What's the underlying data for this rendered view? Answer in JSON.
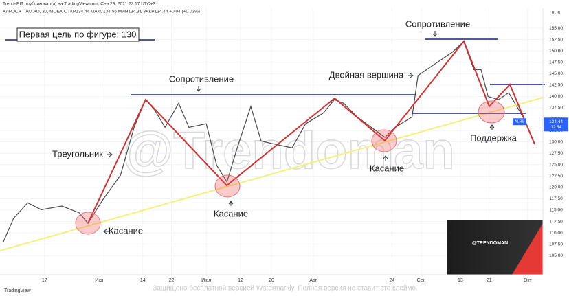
{
  "chart_data": {
    "type": "line",
    "title": "TrendsBIT опубликовал(а) на TradingView.com, Сен 29, 2021 23:17 UTC+3",
    "subtitle": "АЛРОСА ПАО АО, 30, MOEX  ОТКР134.44  МАКС134.56  МИН134.31  ЗАКР134.44  +0.04 (+0.03%)",
    "currency": "RUB",
    "symbol_label": "ALRS",
    "last_price": 134.44,
    "countdown": "12:54",
    "x": [
      0.6,
      2.5,
      5.1,
      7.6,
      11.4,
      14.6,
      16.2,
      19,
      22.2,
      24.7,
      26.8,
      28.5,
      30.4,
      32.9,
      34.8,
      38,
      39.9,
      41.8,
      43.7,
      46.2,
      48.1,
      50.6,
      53.8,
      56.3,
      59.5,
      61.6,
      63.3,
      65.8,
      68.4,
      70.9,
      72.8,
      75.9,
      77,
      79.7,
      83.5,
      85.4,
      87.3,
      88.6,
      89.9,
      91.8,
      93.7,
      95.6,
      96.8
    ],
    "series": [
      {
        "name": "ALRS",
        "color": "#4a4a4a",
        "values": [
          108.0,
          113.2,
          116.6,
          115.1,
          115.9,
          114.4,
          112.1,
          117.4,
          122.7,
          133.2,
          139.3,
          137.0,
          133.2,
          138.5,
          133.2,
          134.0,
          124.9,
          121.2,
          128.7,
          137.8,
          130.2,
          129.5,
          128.7,
          134.0,
          136.3,
          139.3,
          138.5,
          135.5,
          133.2,
          131.0,
          133.2,
          135.5,
          144.6,
          146.8,
          149.9,
          152.1,
          145.9,
          145.9,
          140.0,
          139.3,
          140.8,
          137.0,
          134.44
        ]
      }
    ],
    "xlim": [
      0,
      100
    ],
    "xticks": [
      {
        "value": 8.2,
        "label": "17"
      },
      {
        "value": 18.4,
        "label": "Июн"
      },
      {
        "value": 26.3,
        "label": "14"
      },
      {
        "value": 31.6,
        "label": "22"
      },
      {
        "value": 38,
        "label": "Июл"
      },
      {
        "value": 44.3,
        "label": "12"
      },
      {
        "value": 50,
        "label": "20"
      },
      {
        "value": 57.7,
        "label": "Авг"
      },
      {
        "value": 72.2,
        "label": "24"
      },
      {
        "value": 77.6,
        "label": "Сен"
      },
      {
        "value": 84.8,
        "label": "13"
      },
      {
        "value": 90.1,
        "label": "21"
      },
      {
        "value": 97.2,
        "label": "Окт"
      }
    ],
    "ylim": [
      100.8,
      159.4
    ],
    "yticks": [
      {
        "value": 105,
        "label": "105.00"
      },
      {
        "value": 107.5,
        "label": "107.50"
      },
      {
        "value": 110,
        "label": "110.00"
      },
      {
        "value": 112.5,
        "label": "112.50"
      },
      {
        "value": 115,
        "label": "115.00"
      },
      {
        "value": 117.5,
        "label": "117.50"
      },
      {
        "value": 120,
        "label": "120.00"
      },
      {
        "value": 122.5,
        "label": "122.50"
      },
      {
        "value": 125,
        "label": "125.00"
      },
      {
        "value": 127.5,
        "label": "127.50"
      },
      {
        "value": 130,
        "label": "130.00"
      },
      {
        "value": 132.5,
        "label": "132.50"
      },
      {
        "value": 135,
        "label": "135.00"
      },
      {
        "value": 137.5,
        "label": "137.50"
      },
      {
        "value": 140,
        "label": "140.00"
      },
      {
        "value": 142.5,
        "label": "142.50"
      },
      {
        "value": 145,
        "label": "145.00"
      },
      {
        "value": 147.5,
        "label": "147.50"
      },
      {
        "value": 150,
        "label": "150.00"
      },
      {
        "value": 152.5,
        "label": "152.50"
      },
      {
        "value": 155,
        "label": "155.00"
      }
    ],
    "grid": true,
    "annotations": [
      "Первая цель по фигуре: 130",
      "Сопротивление",
      "Сопротивление",
      "Двойная вершина",
      "Треугольник",
      "Касание",
      "Касание",
      "Касание",
      "Поддержка"
    ],
    "watermark": "@Trendoman",
    "inset_text": "@TRENDOMAN",
    "footer": "Защищено бесплатной версией Watermarkly. Полная версия не ставит это клеймо.",
    "brand": "TradingView"
  }
}
